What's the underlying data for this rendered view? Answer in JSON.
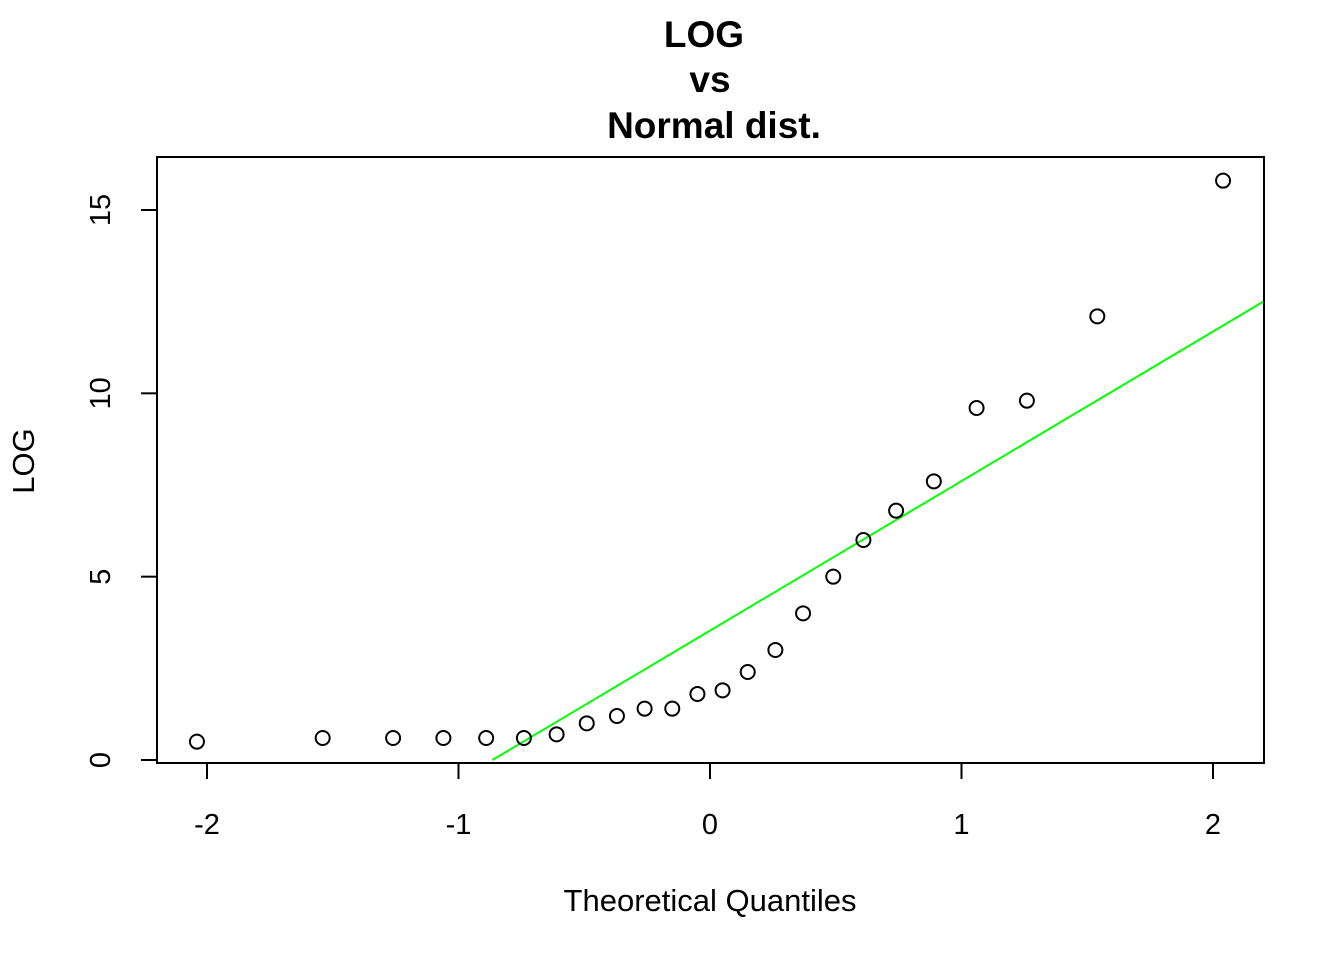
{
  "chart_data": {
    "type": "scatter",
    "title_lines": [
      "LOG",
      "vs",
      "Normal dist."
    ],
    "xlabel": "Theoretical Quantiles",
    "ylabel": "LOG",
    "xlim": [
      -2.2,
      2.2
    ],
    "ylim": [
      0,
      15.5
    ],
    "x_ticks": [
      -2,
      -1,
      0,
      1,
      2
    ],
    "x_tick_labels": [
      "-2",
      "-1",
      "0",
      "1",
      "2"
    ],
    "y_ticks": [
      0,
      5,
      10,
      15
    ],
    "y_tick_labels": [
      "0",
      "5",
      "10",
      "15"
    ],
    "grid": false,
    "series": [
      {
        "marker": "open-circle",
        "color": "#000000",
        "x": [
          -2.04,
          -1.54,
          -1.26,
          -1.06,
          -0.89,
          -0.74,
          -0.61,
          -0.49,
          -0.37,
          -0.26,
          -0.15,
          -0.05,
          0.05,
          0.15,
          0.26,
          0.37,
          0.49,
          0.61,
          0.74,
          0.89,
          1.06,
          1.26,
          1.54,
          2.04
        ],
        "y": [
          0.5,
          0.6,
          0.6,
          0.6,
          0.6,
          0.6,
          0.7,
          1.0,
          1.2,
          1.4,
          1.4,
          1.8,
          1.9,
          2.4,
          3.0,
          4.0,
          5.0,
          6.0,
          6.8,
          7.6,
          9.6,
          9.8,
          12.1,
          15.8
        ]
      }
    ],
    "reference_line": {
      "color": "#00ff00",
      "x": [
        -0.865,
        2.2
      ],
      "y": [
        0.0,
        12.5
      ]
    }
  }
}
